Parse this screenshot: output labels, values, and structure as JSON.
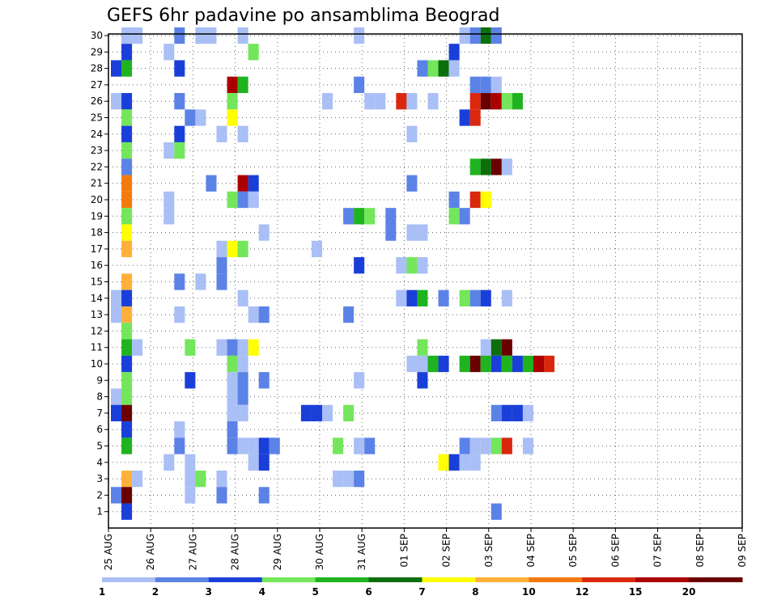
{
  "chart_data": {
    "type": "heatmap",
    "title": "GEFS 6hr padavine po ansamblima Beograd",
    "xlabel": "",
    "ylabel": "",
    "x_tick_labels": [
      "25 AUG",
      "26 AUG",
      "27 AUG",
      "28 AUG",
      "29 AUG",
      "30 AUG",
      "31 AUG",
      "01 SEP",
      "02 SEP",
      "03 SEP",
      "04 SEP",
      "05 SEP",
      "06 SEP",
      "07 SEP",
      "08 SEP",
      "09 SEP"
    ],
    "y_tick_labels": [
      "1",
      "2",
      "3",
      "4",
      "5",
      "6",
      "7",
      "8",
      "9",
      "10",
      "11",
      "12",
      "13",
      "14",
      "15",
      "16",
      "17",
      "18",
      "19",
      "20",
      "21",
      "22",
      "23",
      "24",
      "25",
      "26",
      "27",
      "28",
      "29",
      "30"
    ],
    "grid": true,
    "legend": "bottom",
    "colorbar": {
      "levels": [
        "1",
        "2",
        "3",
        "4",
        "5",
        "6",
        "7",
        "8",
        "10",
        "12",
        "15",
        "20"
      ],
      "colors": [
        "#a9bff5",
        "#5b82e6",
        "#1a3fd9",
        "#73e65b",
        "#1fb31f",
        "#0c6e0c",
        "#ffff00",
        "#ffb03a",
        "#f47a0f",
        "#d9280e",
        "#aa0000",
        "#6b0000"
      ]
    },
    "cell_units": "6hr steps from 25 AUG 00z, ensemble member",
    "cells": [
      [
        1,
        30,
        1
      ],
      [
        2,
        30,
        1
      ],
      [
        6,
        30,
        2
      ],
      [
        8,
        30,
        1
      ],
      [
        9,
        30,
        1
      ],
      [
        12,
        30,
        1
      ],
      [
        23,
        30,
        1
      ],
      [
        33,
        30,
        1
      ],
      [
        34,
        30,
        2
      ],
      [
        35,
        30,
        6
      ],
      [
        36,
        30,
        2
      ],
      [
        1,
        29,
        3
      ],
      [
        5,
        29,
        1
      ],
      [
        13,
        29,
        4
      ],
      [
        32,
        29,
        3
      ],
      [
        0,
        28,
        3
      ],
      [
        1,
        28,
        5
      ],
      [
        6,
        28,
        3
      ],
      [
        29,
        28,
        2
      ],
      [
        30,
        28,
        4
      ],
      [
        31,
        28,
        6
      ],
      [
        32,
        28,
        1
      ],
      [
        11,
        27,
        11
      ],
      [
        12,
        27,
        5
      ],
      [
        23,
        27,
        2
      ],
      [
        34,
        27,
        2
      ],
      [
        35,
        27,
        2
      ],
      [
        36,
        27,
        1
      ],
      [
        0,
        26,
        1
      ],
      [
        1,
        26,
        3
      ],
      [
        6,
        26,
        2
      ],
      [
        11,
        26,
        4
      ],
      [
        20,
        26,
        1
      ],
      [
        24,
        26,
        1
      ],
      [
        25,
        26,
        1
      ],
      [
        27,
        26,
        10
      ],
      [
        28,
        26,
        1
      ],
      [
        30,
        26,
        1
      ],
      [
        34,
        26,
        10
      ],
      [
        35,
        26,
        12
      ],
      [
        36,
        26,
        11
      ],
      [
        37,
        26,
        4
      ],
      [
        38,
        26,
        5
      ],
      [
        1,
        25,
        4
      ],
      [
        7,
        25,
        2
      ],
      [
        8,
        25,
        1
      ],
      [
        11,
        25,
        7
      ],
      [
        33,
        25,
        3
      ],
      [
        34,
        25,
        10
      ],
      [
        1,
        24,
        3
      ],
      [
        6,
        24,
        3
      ],
      [
        10,
        24,
        1
      ],
      [
        12,
        24,
        1
      ],
      [
        28,
        24,
        1
      ],
      [
        1,
        23,
        4
      ],
      [
        5,
        23,
        1
      ],
      [
        6,
        23,
        4
      ],
      [
        1,
        22,
        2
      ],
      [
        34,
        22,
        5
      ],
      [
        35,
        22,
        6
      ],
      [
        36,
        22,
        12
      ],
      [
        37,
        22,
        1
      ],
      [
        1,
        21,
        9
      ],
      [
        9,
        21,
        2
      ],
      [
        12,
        21,
        11
      ],
      [
        13,
        21,
        3
      ],
      [
        28,
        21,
        2
      ],
      [
        1,
        20,
        9
      ],
      [
        5,
        20,
        1
      ],
      [
        11,
        20,
        4
      ],
      [
        12,
        20,
        2
      ],
      [
        13,
        20,
        1
      ],
      [
        32,
        20,
        2
      ],
      [
        34,
        20,
        10
      ],
      [
        35,
        20,
        7
      ],
      [
        1,
        19,
        4
      ],
      [
        5,
        19,
        1
      ],
      [
        22,
        19,
        2
      ],
      [
        23,
        19,
        5
      ],
      [
        24,
        19,
        4
      ],
      [
        26,
        19,
        2
      ],
      [
        32,
        19,
        4
      ],
      [
        33,
        19,
        2
      ],
      [
        1,
        18,
        7
      ],
      [
        14,
        18,
        1
      ],
      [
        26,
        18,
        2
      ],
      [
        28,
        18,
        1
      ],
      [
        29,
        18,
        1
      ],
      [
        1,
        17,
        8
      ],
      [
        10,
        17,
        1
      ],
      [
        11,
        17,
        7
      ],
      [
        12,
        17,
        4
      ],
      [
        19,
        17,
        1
      ],
      [
        10,
        16,
        2
      ],
      [
        23,
        16,
        3
      ],
      [
        27,
        16,
        1
      ],
      [
        28,
        16,
        4
      ],
      [
        29,
        16,
        1
      ],
      [
        1,
        15,
        8
      ],
      [
        6,
        15,
        2
      ],
      [
        8,
        15,
        1
      ],
      [
        10,
        15,
        2
      ],
      [
        0,
        14,
        1
      ],
      [
        1,
        14,
        3
      ],
      [
        12,
        14,
        1
      ],
      [
        27,
        14,
        1
      ],
      [
        28,
        14,
        3
      ],
      [
        29,
        14,
        5
      ],
      [
        31,
        14,
        2
      ],
      [
        33,
        14,
        4
      ],
      [
        34,
        14,
        2
      ],
      [
        35,
        14,
        3
      ],
      [
        37,
        14,
        1
      ],
      [
        0,
        13,
        1
      ],
      [
        1,
        13,
        8
      ],
      [
        6,
        13,
        1
      ],
      [
        13,
        13,
        1
      ],
      [
        14,
        13,
        2
      ],
      [
        22,
        13,
        2
      ],
      [
        1,
        12,
        4
      ],
      [
        1,
        11,
        5
      ],
      [
        2,
        11,
        1
      ],
      [
        7,
        11,
        4
      ],
      [
        10,
        11,
        1
      ],
      [
        11,
        11,
        2
      ],
      [
        12,
        11,
        1
      ],
      [
        13,
        11,
        7
      ],
      [
        29,
        11,
        4
      ],
      [
        35,
        11,
        1
      ],
      [
        36,
        11,
        6
      ],
      [
        37,
        11,
        12
      ],
      [
        1,
        10,
        3
      ],
      [
        11,
        10,
        4
      ],
      [
        12,
        10,
        1
      ],
      [
        28,
        10,
        1
      ],
      [
        29,
        10,
        1
      ],
      [
        30,
        10,
        5
      ],
      [
        31,
        10,
        3
      ],
      [
        33,
        10,
        5
      ],
      [
        34,
        10,
        12
      ],
      [
        35,
        10,
        5
      ],
      [
        36,
        10,
        3
      ],
      [
        37,
        10,
        5
      ],
      [
        38,
        10,
        3
      ],
      [
        39,
        10,
        5
      ],
      [
        40,
        10,
        11
      ],
      [
        41,
        10,
        10
      ],
      [
        1,
        9,
        4
      ],
      [
        7,
        9,
        3
      ],
      [
        11,
        9,
        1
      ],
      [
        12,
        9,
        2
      ],
      [
        14,
        9,
        2
      ],
      [
        23,
        9,
        1
      ],
      [
        29,
        9,
        3
      ],
      [
        0,
        8,
        1
      ],
      [
        1,
        8,
        4
      ],
      [
        11,
        8,
        1
      ],
      [
        12,
        8,
        2
      ],
      [
        0,
        7,
        3
      ],
      [
        1,
        7,
        12
      ],
      [
        11,
        7,
        1
      ],
      [
        12,
        7,
        1
      ],
      [
        18,
        7,
        3
      ],
      [
        19,
        7,
        3
      ],
      [
        20,
        7,
        1
      ],
      [
        22,
        7,
        4
      ],
      [
        36,
        7,
        2
      ],
      [
        37,
        7,
        3
      ],
      [
        38,
        7,
        3
      ],
      [
        39,
        7,
        1
      ],
      [
        1,
        6,
        3
      ],
      [
        6,
        6,
        1
      ],
      [
        11,
        6,
        2
      ],
      [
        1,
        5,
        5
      ],
      [
        6,
        5,
        2
      ],
      [
        11,
        5,
        2
      ],
      [
        12,
        5,
        1
      ],
      [
        13,
        5,
        1
      ],
      [
        14,
        5,
        3
      ],
      [
        15,
        5,
        2
      ],
      [
        21,
        5,
        4
      ],
      [
        23,
        5,
        1
      ],
      [
        24,
        5,
        2
      ],
      [
        33,
        5,
        2
      ],
      [
        34,
        5,
        1
      ],
      [
        35,
        5,
        1
      ],
      [
        36,
        5,
        4
      ],
      [
        37,
        5,
        10
      ],
      [
        39,
        5,
        1
      ],
      [
        5,
        4,
        1
      ],
      [
        7,
        4,
        1
      ],
      [
        13,
        4,
        1
      ],
      [
        14,
        4,
        3
      ],
      [
        31,
        4,
        7
      ],
      [
        32,
        4,
        3
      ],
      [
        33,
        4,
        1
      ],
      [
        34,
        4,
        1
      ],
      [
        1,
        3,
        8
      ],
      [
        2,
        3,
        1
      ],
      [
        7,
        3,
        1
      ],
      [
        8,
        3,
        4
      ],
      [
        10,
        3,
        1
      ],
      [
        21,
        3,
        1
      ],
      [
        22,
        3,
        1
      ],
      [
        23,
        3,
        2
      ],
      [
        0,
        2,
        2
      ],
      [
        1,
        2,
        12
      ],
      [
        7,
        2,
        1
      ],
      [
        10,
        2,
        2
      ],
      [
        14,
        2,
        2
      ],
      [
        1,
        1,
        3
      ],
      [
        36,
        1,
        2
      ]
    ]
  }
}
